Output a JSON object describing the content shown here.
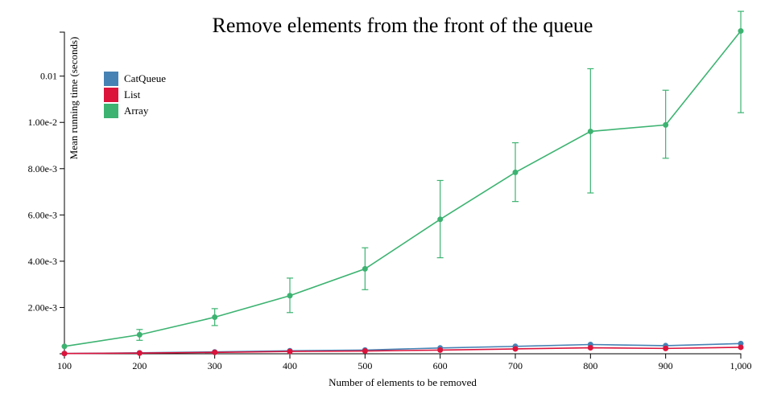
{
  "chart_data": {
    "type": "line",
    "title": "Remove elements from the front of the queue",
    "xlabel": "Number of elements to be removed",
    "ylabel": "Mean running time (seconds)",
    "x": [
      100,
      200,
      300,
      400,
      500,
      600,
      700,
      800,
      900,
      1000
    ],
    "x_tick_labels": [
      "100",
      "200",
      "300",
      "400",
      "500",
      "600",
      "700",
      "800",
      "900",
      "1,000"
    ],
    "y_ticks": [
      0.002,
      0.004,
      0.006,
      0.008,
      0.01,
      0.012
    ],
    "y_tick_labels": [
      "2.00e-3",
      "4.00e-3",
      "6.00e-3",
      "8.00e-3",
      "1.00e-2",
      "0.01"
    ],
    "xlim": [
      100,
      1000
    ],
    "ylim": [
      0,
      0.0139
    ],
    "legend_position": "top-left",
    "grid": false,
    "series": [
      {
        "name": "CatQueue",
        "color": "#4682b4",
        "values": [
          1e-05,
          4e-05,
          8e-05,
          0.00013,
          0.00016,
          0.00025,
          0.00032,
          0.0004,
          0.00035,
          0.00044
        ]
      },
      {
        "name": "List",
        "color": "#dc143c",
        "values": [
          1e-05,
          3e-05,
          6e-05,
          0.0001,
          0.00012,
          0.00016,
          0.00021,
          0.00026,
          0.00023,
          0.00028
        ]
      },
      {
        "name": "Array",
        "color": "#3cb371",
        "values": [
          0.00032,
          0.00082,
          0.00158,
          0.00251,
          0.00367,
          0.00581,
          0.00784,
          0.00961,
          0.00989,
          0.01395
        ],
        "error_low": [
          0.00032,
          0.00058,
          0.00122,
          0.00178,
          0.00277,
          0.00415,
          0.00658,
          0.00695,
          0.00845,
          0.01042
        ],
        "error_high": [
          0.00032,
          0.00105,
          0.00195,
          0.00327,
          0.00458,
          0.00749,
          0.00912,
          0.01232,
          0.01139,
          0.0148
        ]
      }
    ]
  }
}
